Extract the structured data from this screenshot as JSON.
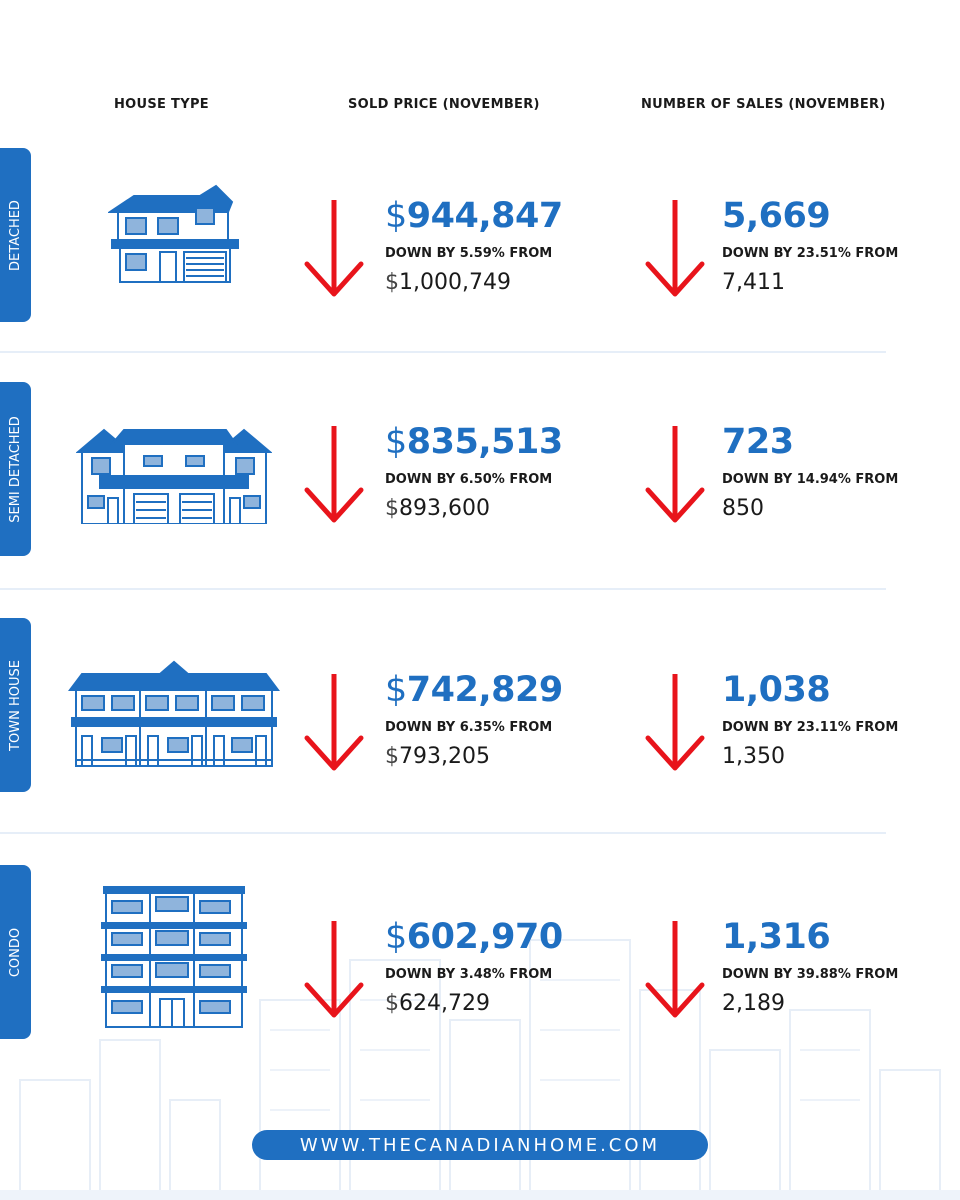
{
  "headers": {
    "house_type": "HOUSE TYPE",
    "sold_price": "SOLD PRICE (NOVEMBER)",
    "num_sales": "NUMBER OF SALES (NOVEMBER)"
  },
  "rows": [
    {
      "label": "DETACHED",
      "icon": "detached-house-icon",
      "price_symbol": "$",
      "price_value": "944,847",
      "price_change": "DOWN BY 5.59% FROM",
      "price_prev_symbol": "$",
      "price_prev_value": "1,000,749",
      "sales_value": "5,669",
      "sales_change": "DOWN BY 23.51% FROM",
      "sales_prev": "7,411"
    },
    {
      "label": "SEMI DETACHED",
      "icon": "semi-detached-house-icon",
      "price_symbol": "$",
      "price_value": "835,513",
      "price_change": "DOWN BY 6.50% FROM",
      "price_prev_symbol": "$",
      "price_prev_value": "893,600",
      "sales_value": "723",
      "sales_change": "DOWN BY 14.94% FROM",
      "sales_prev": "850"
    },
    {
      "label": "TOWN HOUSE",
      "icon": "town-house-icon",
      "price_symbol": "$",
      "price_value": "742,829",
      "price_change": "DOWN BY 6.35% FROM",
      "price_prev_symbol": "$",
      "price_prev_value": "793,205",
      "sales_value": "1,038",
      "sales_change": "DOWN BY 23.11% FROM",
      "sales_prev": "1,350"
    },
    {
      "label": "CONDO",
      "icon": "condo-building-icon",
      "price_symbol": "$",
      "price_value": "602,970",
      "price_change": "DOWN BY 3.48% FROM",
      "price_prev_symbol": "$",
      "price_prev_value": "624,729",
      "sales_value": "1,316",
      "sales_change": "DOWN BY 39.88% FROM",
      "sales_prev": "2,189"
    }
  ],
  "footer": {
    "url": "WWW.THECANADIANHOME.COM"
  },
  "colors": {
    "brand_blue": "#1f6fc1",
    "arrow_red": "#e8141b",
    "divider": "#e6eef8"
  }
}
